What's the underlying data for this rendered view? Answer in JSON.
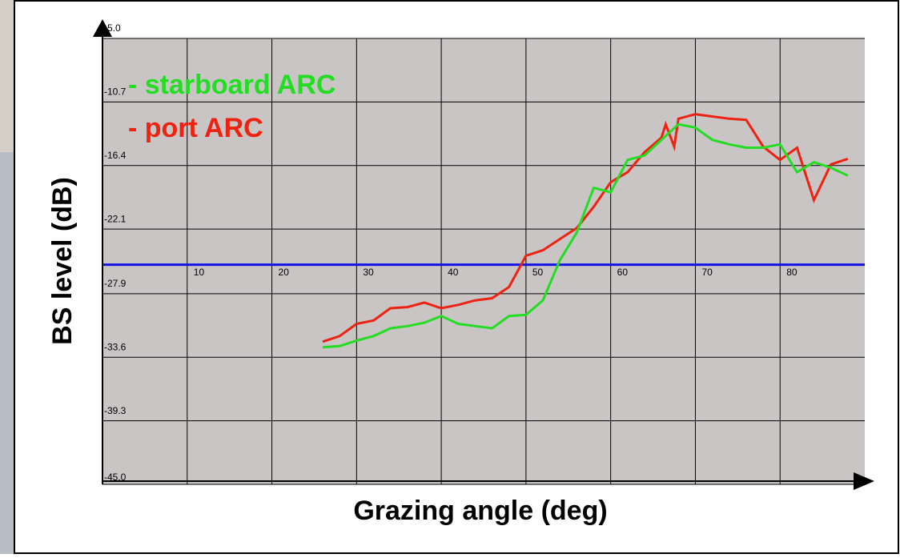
{
  "chart_data": {
    "type": "line",
    "xlabel": "Grazing angle (deg)",
    "ylabel": "BS level (dB)",
    "xlim": [
      0,
      90
    ],
    "ylim": [
      -45,
      -5
    ],
    "xticks": [
      10,
      20,
      30,
      40,
      50,
      60,
      70,
      80
    ],
    "yticks": [
      {
        "value": -45,
        "label": "-45.0"
      },
      -39.3,
      -33.6,
      -27.9,
      -22.1,
      -16.4,
      -10.7,
      {
        "value": -5,
        "label": "-5.0"
      }
    ],
    "grid": true,
    "reference_line": {
      "value": -25.3,
      "color": "#1414e6"
    },
    "series": [
      {
        "name": "- starboard ARC",
        "color": "#22dd22",
        "x": [
          26,
          28,
          30,
          32,
          34,
          36,
          38,
          40,
          42,
          44,
          46,
          48,
          50,
          52,
          54,
          56,
          58,
          60,
          62,
          64,
          66,
          68,
          70,
          72,
          74,
          76,
          78,
          80,
          82,
          84,
          86,
          88
        ],
        "values": [
          -32.7,
          -32.6,
          -32.1,
          -31.7,
          -31.0,
          -30.8,
          -30.5,
          -29.9,
          -30.6,
          -30.8,
          -31.0,
          -29.9,
          -29.8,
          -28.5,
          -24.9,
          -22.4,
          -18.4,
          -18.8,
          -15.9,
          -15.5,
          -14.1,
          -12.7,
          -13.0,
          -14.1,
          -14.5,
          -14.8,
          -14.8,
          -14.5,
          -17.0,
          -16.1,
          -16.6,
          -17.3
        ]
      },
      {
        "name": "- port ARC",
        "color": "#ee2211",
        "x": [
          26,
          28,
          30,
          32,
          34,
          36,
          38,
          40,
          42,
          44,
          46,
          48,
          50,
          52,
          54,
          56,
          58,
          60,
          62,
          64,
          66,
          66.5,
          67.5,
          68,
          70,
          72,
          74,
          76,
          78,
          80,
          82,
          84,
          86,
          88
        ],
        "values": [
          -32.2,
          -31.7,
          -30.6,
          -30.3,
          -29.2,
          -29.1,
          -28.7,
          -29.2,
          -28.9,
          -28.5,
          -28.3,
          -27.3,
          -24.5,
          -24.0,
          -23.0,
          -22.0,
          -20.1,
          -17.9,
          -17.0,
          -15.2,
          -13.9,
          -12.7,
          -14.7,
          -12.2,
          -11.8,
          -12.0,
          -12.2,
          -12.3,
          -14.7,
          -15.9,
          -14.8,
          -19.5,
          -16.3,
          -15.8
        ]
      }
    ]
  }
}
